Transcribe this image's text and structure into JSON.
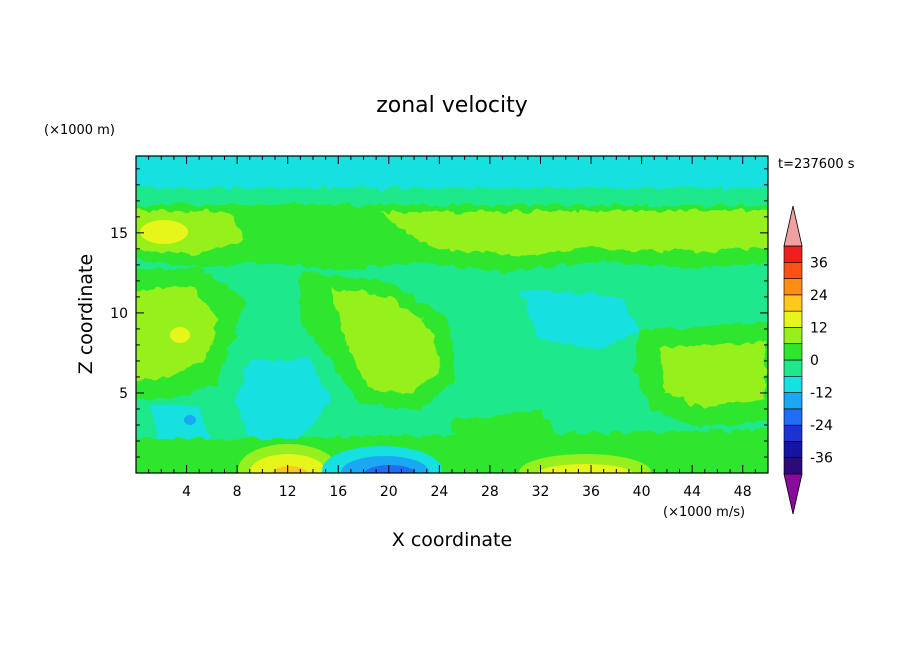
{
  "chart_data": {
    "type": "heatmap",
    "title": "zonal velocity",
    "xlabel": "X coordinate",
    "ylabel": "Z coordinate",
    "y_scale_note": "(×1000 m)",
    "colorbar_units": "(×1000 m/s)",
    "time_label": "t=237600 s",
    "xlim": [
      0,
      50
    ],
    "ylim": [
      0,
      19.8
    ],
    "x_ticks": [
      4,
      8,
      12,
      16,
      20,
      24,
      28,
      32,
      36,
      40,
      44,
      48
    ],
    "y_ticks": [
      5,
      10,
      15
    ],
    "colorbar": {
      "levels": [
        -42,
        -36,
        -30,
        -24,
        -18,
        -12,
        -6,
        0,
        6,
        12,
        18,
        24,
        30,
        36,
        42
      ],
      "tick_labels": [
        "36",
        "24",
        "12",
        "0",
        "-12",
        "-24",
        "-36"
      ],
      "tick_values": [
        36,
        24,
        12,
        0,
        -12,
        -24,
        -36
      ],
      "extend": "both",
      "colors": [
        "#8a0a9e",
        "#2d0a7a",
        "#1414a0",
        "#1e32d2",
        "#1f6ef5",
        "#1aa8f2",
        "#16e0e0",
        "#1ee88c",
        "#2ee62e",
        "#96f01e",
        "#e6f51a",
        "#ffc81e",
        "#ff8c14",
        "#ff5014",
        "#f01e1e",
        "#f0a0a0"
      ]
    },
    "features": [
      {
        "x": 2,
        "z": 15.3,
        "value": 14
      },
      {
        "x": 3,
        "z": 8.8,
        "value": 10
      },
      {
        "x": 12,
        "z": 0.6,
        "value": 16
      },
      {
        "x": 20,
        "z": 0.6,
        "value": -20
      },
      {
        "x": 36,
        "z": 0.5,
        "value": 13
      },
      {
        "x": 45,
        "z": 6.5,
        "value": 8
      },
      {
        "x": 12,
        "z": 5.0,
        "value": -10
      },
      {
        "x": 36,
        "z": 16,
        "value": 8
      },
      {
        "x": 20,
        "z": 10,
        "value": 2
      },
      {
        "x": 30,
        "z": 6,
        "value": 3
      }
    ]
  }
}
